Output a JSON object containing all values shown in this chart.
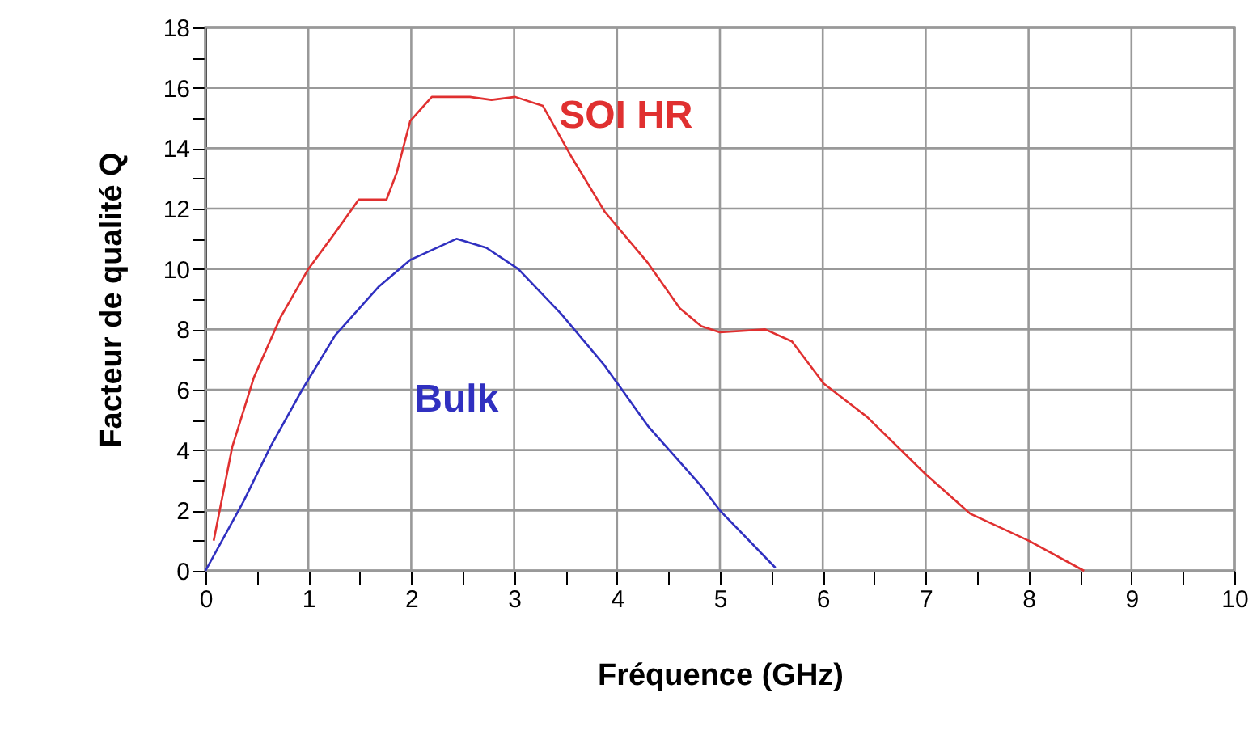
{
  "chart_data": {
    "type": "line",
    "xlabel": "Fréquence (GHz)",
    "ylabel": "Facteur de qualité Q",
    "xlim": [
      0,
      10
    ],
    "xticks": [
      0,
      {
        "value": 0.5,
        "label": null
      },
      1,
      {
        "value": 1.5,
        "label": null
      },
      2,
      {
        "value": 2.5,
        "label": null
      },
      3,
      {
        "value": 3.5,
        "label": null
      },
      4,
      {
        "value": 4.5,
        "label": null
      },
      5,
      {
        "value": 5.5,
        "label": null
      },
      6,
      {
        "value": 6.5,
        "label": null
      },
      7,
      {
        "value": 7.5,
        "label": null
      },
      8,
      {
        "value": 8.5,
        "label": null
      },
      9,
      {
        "value": 9.5,
        "label": null
      },
      10
    ],
    "ylim": [
      0,
      18
    ],
    "yticks": [
      0,
      {
        "value": 1,
        "label": null
      },
      2,
      {
        "value": 3,
        "label": null
      },
      4,
      {
        "value": 5,
        "label": null
      },
      6,
      {
        "value": 7,
        "label": null
      },
      8,
      {
        "value": 9,
        "label": null
      },
      10,
      {
        "value": 11,
        "label": null
      },
      12,
      {
        "value": 13,
        "label": null
      },
      14,
      {
        "value": 15,
        "label": null
      },
      16,
      {
        "value": 17,
        "label": null
      },
      18
    ],
    "grid": true,
    "marker": "none",
    "line_style": "solid",
    "series": [
      {
        "name": "SOI HR",
        "color": "#e03030",
        "x": [
          0.08,
          0.26,
          0.47,
          0.73,
          1.0,
          1.26,
          1.49,
          1.76,
          1.86,
          1.99,
          2.2,
          2.57,
          2.78,
          3.01,
          3.28,
          3.56,
          3.88,
          4.3,
          4.61,
          4.82,
          5.0,
          5.44,
          5.7,
          6.01,
          6.43,
          7.0,
          7.43,
          8.0,
          8.54
        ],
        "values": [
          1.0,
          4.1,
          6.4,
          8.4,
          10.0,
          11.2,
          12.3,
          12.3,
          13.2,
          14.9,
          15.7,
          15.7,
          15.6,
          15.7,
          15.4,
          13.7,
          11.9,
          10.2,
          8.7,
          8.1,
          7.9,
          8.0,
          7.6,
          6.2,
          5.1,
          3.2,
          1.9,
          1.0,
          0.0
        ]
      },
      {
        "name": "Bulk",
        "color": "#3030c0",
        "x": [
          0,
          0.37,
          0.63,
          0.94,
          1.26,
          1.68,
          1.99,
          2.44,
          2.73,
          3.04,
          3.46,
          3.88,
          4.3,
          4.82,
          5.0,
          5.54
        ],
        "values": [
          0,
          2.3,
          4.1,
          6.0,
          7.8,
          9.4,
          10.3,
          11.0,
          10.7,
          10.0,
          8.5,
          6.8,
          4.8,
          2.8,
          2.0,
          0.1
        ]
      }
    ]
  }
}
